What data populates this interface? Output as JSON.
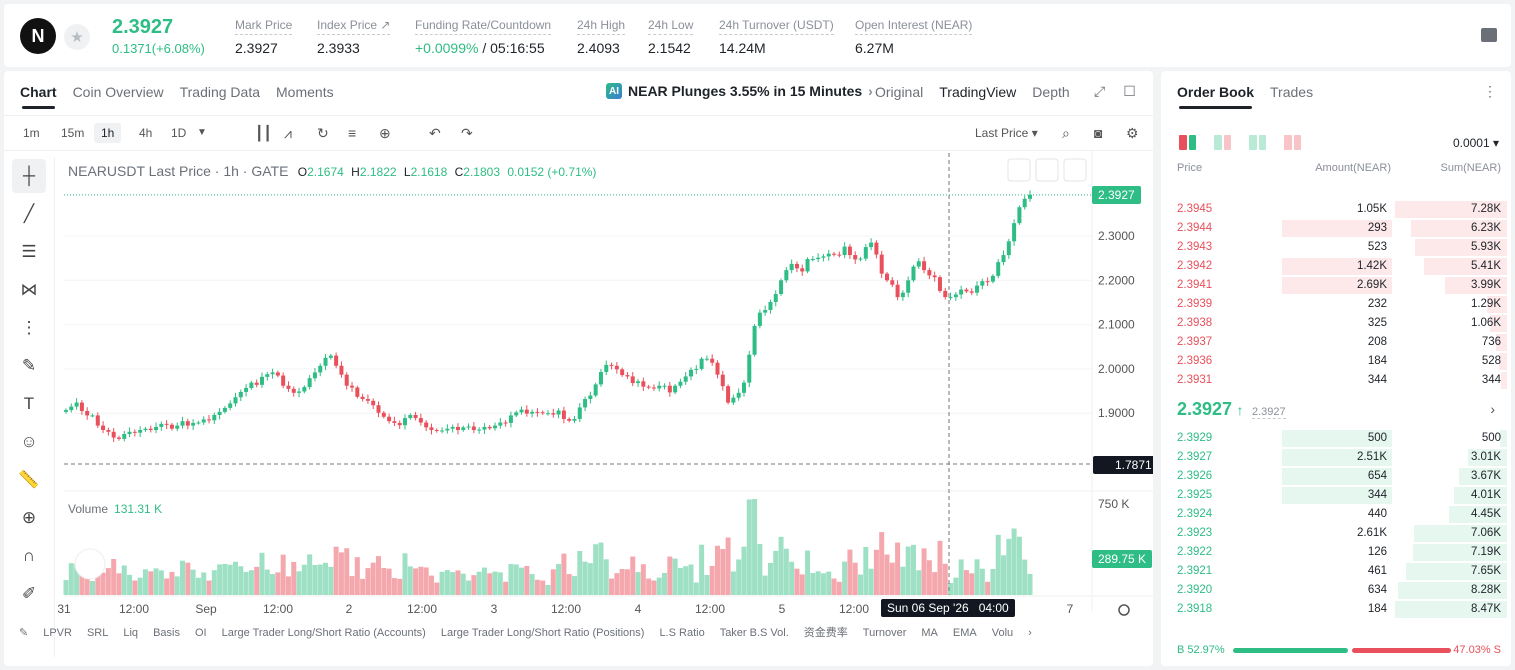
{
  "header": {
    "logo": "N",
    "last_price": "2.3927",
    "change": "0.1371(+6.08%)",
    "stats": [
      {
        "label": "Mark Price",
        "value": "2.3927"
      },
      {
        "label": "Index Price ↗",
        "value": "2.3933"
      },
      {
        "label": "Funding Rate/Countdown",
        "value_green": "+0.0099%",
        "value": " / 05:16:55"
      },
      {
        "label": "24h High",
        "value": "2.4093"
      },
      {
        "label": "24h Low",
        "value": "2.1542"
      },
      {
        "label": "24h Turnover (USDT)",
        "value": "14.24M"
      },
      {
        "label": "Open Interest (NEAR)",
        "value": "6.27M"
      }
    ]
  },
  "chart_panel": {
    "tabs": [
      "Chart",
      "Coin Overview",
      "Trading Data",
      "Moments"
    ],
    "news": "NEAR Plunges 3.55% in 15 Minutes",
    "news_badge": "AI",
    "views": [
      "Original",
      "TradingView",
      "Depth"
    ],
    "intervals": [
      "1m",
      "15m",
      "1h",
      "4h",
      "1D"
    ],
    "price_type": "Last Price ▾",
    "legend": {
      "symbol": "NEARUSDT Last Price · 1h · GATE",
      "o_label": "O",
      "o": "2.1674",
      "h_label": "H",
      "h": "2.1822",
      "l_label": "L",
      "l": "2.1618",
      "c_label": "C",
      "c": "2.1803",
      "chg": "0.0152 (+0.71%)"
    },
    "volume_label": "Volume",
    "volume_value": "131.31 K",
    "crosshair_price": "1.7871",
    "crosshair_time": "Sun 06 Sep '26   04:00",
    "last_price_tag": "2.3927",
    "volume_tag": "289.75 K",
    "indicators": [
      "LPVR",
      "SRL",
      "Liq",
      "Basis",
      "OI",
      "Large Trader Long/Short Ratio (Accounts)",
      "Large Trader Long/Short Ratio (Positions)",
      "L.S Ratio",
      "Taker B.S Vol.",
      "资金费率",
      "Turnover",
      "MA",
      "EMA",
      "Volu"
    ]
  },
  "chart_data": {
    "type": "candlestick",
    "title": "NEARUSDT Last Price · 1h · GATE",
    "y_ticks": [
      "2.3000",
      "2.2000",
      "2.1000",
      "2.0000",
      "1.9000"
    ],
    "y_tick_values": [
      2.3,
      2.2,
      2.1,
      2.0,
      1.9
    ],
    "volume_ticks": [
      "750 K"
    ],
    "x_ticks": [
      "31",
      "12:00",
      "Sep",
      "12:00",
      "2",
      "12:00",
      "3",
      "12:00",
      "4",
      "12:00",
      "5",
      "12:00",
      "6",
      "12:00",
      "7"
    ],
    "close": [
      1.907,
      1.915,
      1.924,
      1.905,
      1.895,
      1.895,
      1.872,
      1.862,
      1.858,
      1.845,
      1.842,
      1.853,
      1.858,
      1.856,
      1.862,
      1.865,
      1.862,
      1.869,
      1.876,
      1.874,
      1.865,
      1.872,
      1.882,
      1.872,
      1.878,
      1.879,
      1.886,
      1.884,
      1.896,
      1.903,
      1.912,
      1.922,
      1.936,
      1.948,
      1.957,
      1.969,
      1.964,
      1.982,
      1.988,
      1.992,
      1.985,
      1.962,
      1.955,
      1.946,
      1.949,
      1.959,
      1.979,
      1.992,
      2.007,
      2.025,
      2.03,
      2.007,
      1.987,
      1.962,
      1.958,
      1.937,
      1.932,
      1.928,
      1.918,
      1.901,
      1.892,
      1.882,
      1.878,
      1.873,
      1.889,
      1.896,
      1.889,
      1.879,
      1.868,
      1.862,
      1.86,
      1.861,
      1.865,
      1.869,
      1.862,
      1.868,
      1.87,
      1.862,
      1.863,
      1.869,
      1.866,
      1.872,
      1.879,
      1.878,
      1.895,
      1.902,
      1.908,
      1.899,
      1.903,
      1.902,
      1.9,
      1.9,
      1.897,
      1.906,
      1.887,
      1.883,
      1.887,
      1.913,
      1.932,
      1.94,
      1.965,
      1.993,
      2.009,
      2.007,
      1.999,
      1.986,
      1.983,
      1.968,
      1.972,
      1.96,
      1.958,
      1.956,
      1.962,
      1.962,
      1.947,
      1.962,
      1.971,
      1.983,
      1.998,
      2.0,
      2.023,
      2.023,
      2.014,
      1.987,
      1.961,
      1.924,
      1.935,
      1.946,
      1.969,
      2.032,
      2.097,
      2.127,
      2.133,
      2.151,
      2.169,
      2.2,
      2.223,
      2.237,
      2.227,
      2.22,
      2.248,
      2.248,
      2.251,
      2.254,
      2.26,
      2.258,
      2.257,
      2.276,
      2.257,
      2.247,
      2.249,
      2.275,
      2.285,
      2.258,
      2.215,
      2.2,
      2.19,
      2.162,
      2.172,
      2.2,
      2.231,
      2.243,
      2.223,
      2.211,
      2.207,
      2.176,
      2.162,
      2.162,
      2.168,
      2.179,
      2.175,
      2.172,
      2.188,
      2.198,
      2.197,
      2.21,
      2.241,
      2.257,
      2.288,
      2.329,
      2.365,
      2.384,
      2.393
    ],
    "x_start": "2026-08-31 04:00",
    "x_step_hours": 1
  },
  "order_book": {
    "tabs": [
      "Order Book",
      "Trades"
    ],
    "precision": "0.0001 ▾",
    "headers": [
      "Price",
      "Amount(NEAR)",
      "Sum(NEAR)"
    ],
    "asks": [
      {
        "price": "2.3945",
        "amount": "1.05K",
        "sum": "7.28K",
        "amount_fill": 0.0,
        "sum_fill": 1.0
      },
      {
        "price": "2.3944",
        "amount": "293",
        "sum": "6.23K",
        "amount_fill": 0.9,
        "sum_fill": 0.86
      },
      {
        "price": "2.3943",
        "amount": "523",
        "sum": "5.93K",
        "amount_fill": 0.0,
        "sum_fill": 0.82
      },
      {
        "price": "2.3942",
        "amount": "1.42K",
        "sum": "5.41K",
        "amount_fill": 0.9,
        "sum_fill": 0.74
      },
      {
        "price": "2.3941",
        "amount": "2.69K",
        "sum": "3.99K",
        "amount_fill": 0.9,
        "sum_fill": 0.55
      },
      {
        "price": "2.3939",
        "amount": "232",
        "sum": "1.29K",
        "amount_fill": 0.0,
        "sum_fill": 0.18
      },
      {
        "price": "2.3938",
        "amount": "325",
        "sum": "1.06K",
        "amount_fill": 0.0,
        "sum_fill": 0.15
      },
      {
        "price": "2.3937",
        "amount": "208",
        "sum": "736",
        "amount_fill": 0.0,
        "sum_fill": 0.1
      },
      {
        "price": "2.3936",
        "amount": "184",
        "sum": "528",
        "amount_fill": 0.0,
        "sum_fill": 0.07
      },
      {
        "price": "2.3931",
        "amount": "344",
        "sum": "344",
        "amount_fill": 0.0,
        "sum_fill": 0.05
      }
    ],
    "mid_price": "2.3927",
    "mid_arrow": "↑",
    "mark_price": "2.3927",
    "bids": [
      {
        "price": "2.3929",
        "amount": "500",
        "sum": "500",
        "amount_fill": 0.9,
        "sum_fill": 0.06
      },
      {
        "price": "2.3927",
        "amount": "2.51K",
        "sum": "3.01K",
        "amount_fill": 0.9,
        "sum_fill": 0.35
      },
      {
        "price": "2.3926",
        "amount": "654",
        "sum": "3.67K",
        "amount_fill": 0.9,
        "sum_fill": 0.43
      },
      {
        "price": "2.3925",
        "amount": "344",
        "sum": "4.01K",
        "amount_fill": 0.9,
        "sum_fill": 0.47
      },
      {
        "price": "2.3924",
        "amount": "440",
        "sum": "4.45K",
        "amount_fill": 0.0,
        "sum_fill": 0.52
      },
      {
        "price": "2.3923",
        "amount": "2.61K",
        "sum": "7.06K",
        "amount_fill": 0.0,
        "sum_fill": 0.83
      },
      {
        "price": "2.3922",
        "amount": "126",
        "sum": "7.19K",
        "amount_fill": 0.0,
        "sum_fill": 0.84
      },
      {
        "price": "2.3921",
        "amount": "461",
        "sum": "7.65K",
        "amount_fill": 0.0,
        "sum_fill": 0.9
      },
      {
        "price": "2.3920",
        "amount": "634",
        "sum": "8.28K",
        "amount_fill": 0.0,
        "sum_fill": 0.97
      },
      {
        "price": "2.3918",
        "amount": "184",
        "sum": "8.47K",
        "amount_fill": 0.0,
        "sum_fill": 1.0
      }
    ],
    "buy_ratio": "B 52.97%",
    "sell_ratio": "47.03% S",
    "buy_fraction": 0.5297
  }
}
